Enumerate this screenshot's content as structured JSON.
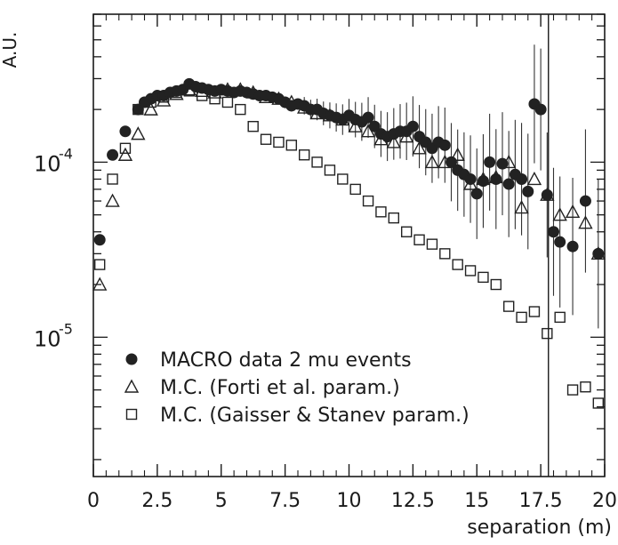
{
  "chart_data": {
    "type": "scatter",
    "title": "",
    "xlabel": "separation (m)",
    "ylabel": "A.U.",
    "xlim": [
      0,
      20
    ],
    "ylim": [
      1.6e-06,
      0.0007
    ],
    "yscale": "log",
    "xticks": [
      0,
      2.5,
      5,
      7.5,
      10,
      12.5,
      15,
      17.5,
      20
    ],
    "xtick_labels": [
      "0",
      "2.5",
      "5",
      "7.5",
      "10",
      "12.5",
      "15",
      "17.5",
      "20"
    ],
    "yticks_labeled": [
      {
        "value": 0.0001,
        "base": "10",
        "exp": "-4"
      },
      {
        "value": 1e-05,
        "base": "10",
        "exp": "-5"
      }
    ],
    "legend_position": "bottom-left",
    "vertical_line_x": 17.8,
    "series": [
      {
        "name": "MACRO data 2 mu events",
        "marker": "filled-circle",
        "color": "#222222",
        "x": [
          0.25,
          0.75,
          1.25,
          1.75,
          2.0,
          2.25,
          2.5,
          2.75,
          3.0,
          3.25,
          3.5,
          3.75,
          4.0,
          4.25,
          4.5,
          4.75,
          5.0,
          5.25,
          5.5,
          5.75,
          6.0,
          6.25,
          6.5,
          6.75,
          7.0,
          7.25,
          7.5,
          7.75,
          8.0,
          8.25,
          8.5,
          8.75,
          9.0,
          9.25,
          9.5,
          9.75,
          10.0,
          10.25,
          10.5,
          10.75,
          11.0,
          11.25,
          11.5,
          11.75,
          12.0,
          12.25,
          12.5,
          12.75,
          13.0,
          13.25,
          13.5,
          13.75,
          14.0,
          14.25,
          14.5,
          14.75,
          15.0,
          15.25,
          15.5,
          15.75,
          16.0,
          16.25,
          16.5,
          16.75,
          17.0,
          17.25,
          17.5,
          17.75,
          18.0,
          18.25,
          18.75,
          19.25,
          19.75
        ],
        "y": [
          3.6e-05,
          0.00011,
          0.00015,
          0.0002,
          0.00022,
          0.00023,
          0.00024,
          0.00024,
          0.00025,
          0.000255,
          0.00026,
          0.00028,
          0.00027,
          0.000265,
          0.00026,
          0.000255,
          0.00026,
          0.000255,
          0.00025,
          0.000255,
          0.00025,
          0.000245,
          0.00024,
          0.00024,
          0.000235,
          0.00023,
          0.00022,
          0.00021,
          0.000215,
          0.00021,
          0.0002,
          0.0002,
          0.00019,
          0.000185,
          0.00018,
          0.000175,
          0.000185,
          0.000175,
          0.00017,
          0.00018,
          0.00016,
          0.000145,
          0.00014,
          0.000145,
          0.00015,
          0.00015,
          0.00016,
          0.00014,
          0.00013,
          0.00012,
          0.00013,
          0.000125,
          0.0001,
          9e-05,
          8.5e-05,
          8e-05,
          6.6e-05,
          7.8e-05,
          0.0001,
          8e-05,
          9.8e-05,
          7.5e-05,
          8.5e-05,
          8e-05,
          6.8e-05,
          0.000215,
          0.0002,
          6.5e-05,
          4e-05,
          3.5e-05,
          3.3e-05,
          6e-05,
          3e-05
        ],
        "y_err": [
          0,
          0,
          0,
          0,
          0,
          0,
          0,
          0,
          0,
          0,
          0,
          0,
          0,
          0,
          0,
          0,
          0,
          0,
          0,
          0,
          0,
          0,
          0,
          0,
          0,
          0,
          0,
          0,
          0,
          0,
          0,
          0,
          0,
          0,
          0,
          0,
          0,
          0,
          0,
          0,
          0,
          0,
          0,
          0,
          0,
          0,
          0,
          0,
          0,
          0,
          0,
          0,
          0,
          0,
          0,
          0,
          0,
          0,
          0,
          0,
          0,
          0,
          0,
          0,
          0,
          0,
          0,
          0,
          0,
          0,
          0,
          0,
          0
        ]
      },
      {
        "name": "M.C. (Forti et al. param.)",
        "marker": "open-triangle",
        "color": "#222222",
        "x": [
          0.25,
          0.75,
          1.25,
          1.75,
          2.25,
          2.75,
          3.25,
          3.75,
          4.25,
          4.75,
          5.25,
          5.75,
          6.25,
          6.75,
          7.25,
          7.75,
          8.25,
          8.75,
          9.25,
          9.75,
          10.25,
          10.75,
          11.25,
          11.75,
          12.25,
          12.75,
          13.25,
          13.75,
          14.25,
          14.75,
          15.25,
          15.75,
          16.25,
          16.75,
          17.25,
          17.75,
          18.25,
          18.75,
          19.25,
          19.75
        ],
        "y": [
          2e-05,
          6e-05,
          0.00011,
          0.000145,
          0.0002,
          0.000225,
          0.000245,
          0.00026,
          0.000255,
          0.00025,
          0.00026,
          0.00026,
          0.00025,
          0.000235,
          0.00023,
          0.00022,
          0.000205,
          0.00019,
          0.000185,
          0.000175,
          0.00016,
          0.00015,
          0.000135,
          0.00013,
          0.00014,
          0.00012,
          0.0001,
          0.0001,
          0.00011,
          7.5e-05,
          8e-05,
          8.2e-05,
          0.0001,
          5.5e-05,
          8e-05,
          6.5e-05,
          5e-05,
          5.2e-05,
          4.5e-05,
          3e-05
        ]
      },
      {
        "name": "M.C. (Gaisser & Stanev param.)",
        "marker": "open-square",
        "color": "#222222",
        "x": [
          0.25,
          0.75,
          1.25,
          1.75,
          2.25,
          2.75,
          3.25,
          3.75,
          4.25,
          4.75,
          5.25,
          5.75,
          6.25,
          6.75,
          7.25,
          7.75,
          8.25,
          8.75,
          9.25,
          9.75,
          10.25,
          10.75,
          11.25,
          11.75,
          12.25,
          12.75,
          13.25,
          13.75,
          14.25,
          14.75,
          15.25,
          15.75,
          16.25,
          16.75,
          17.25,
          17.75,
          18.25,
          18.75,
          19.25,
          19.75
        ],
        "y": [
          2.6e-05,
          8e-05,
          0.00012,
          0.0002,
          0.00022,
          0.000235,
          0.00025,
          0.000255,
          0.00024,
          0.00023,
          0.00022,
          0.0002,
          0.00016,
          0.000135,
          0.00013,
          0.000125,
          0.00011,
          0.0001,
          9e-05,
          8e-05,
          7e-05,
          6e-05,
          5.2e-05,
          4.8e-05,
          4e-05,
          3.6e-05,
          3.4e-05,
          3e-05,
          2.6e-05,
          2.4e-05,
          2.2e-05,
          2e-05,
          1.5e-05,
          1.3e-05,
          1.4e-05,
          1.05e-05,
          1.3e-05,
          5e-06,
          5.2e-06,
          4.2e-06
        ]
      }
    ]
  }
}
